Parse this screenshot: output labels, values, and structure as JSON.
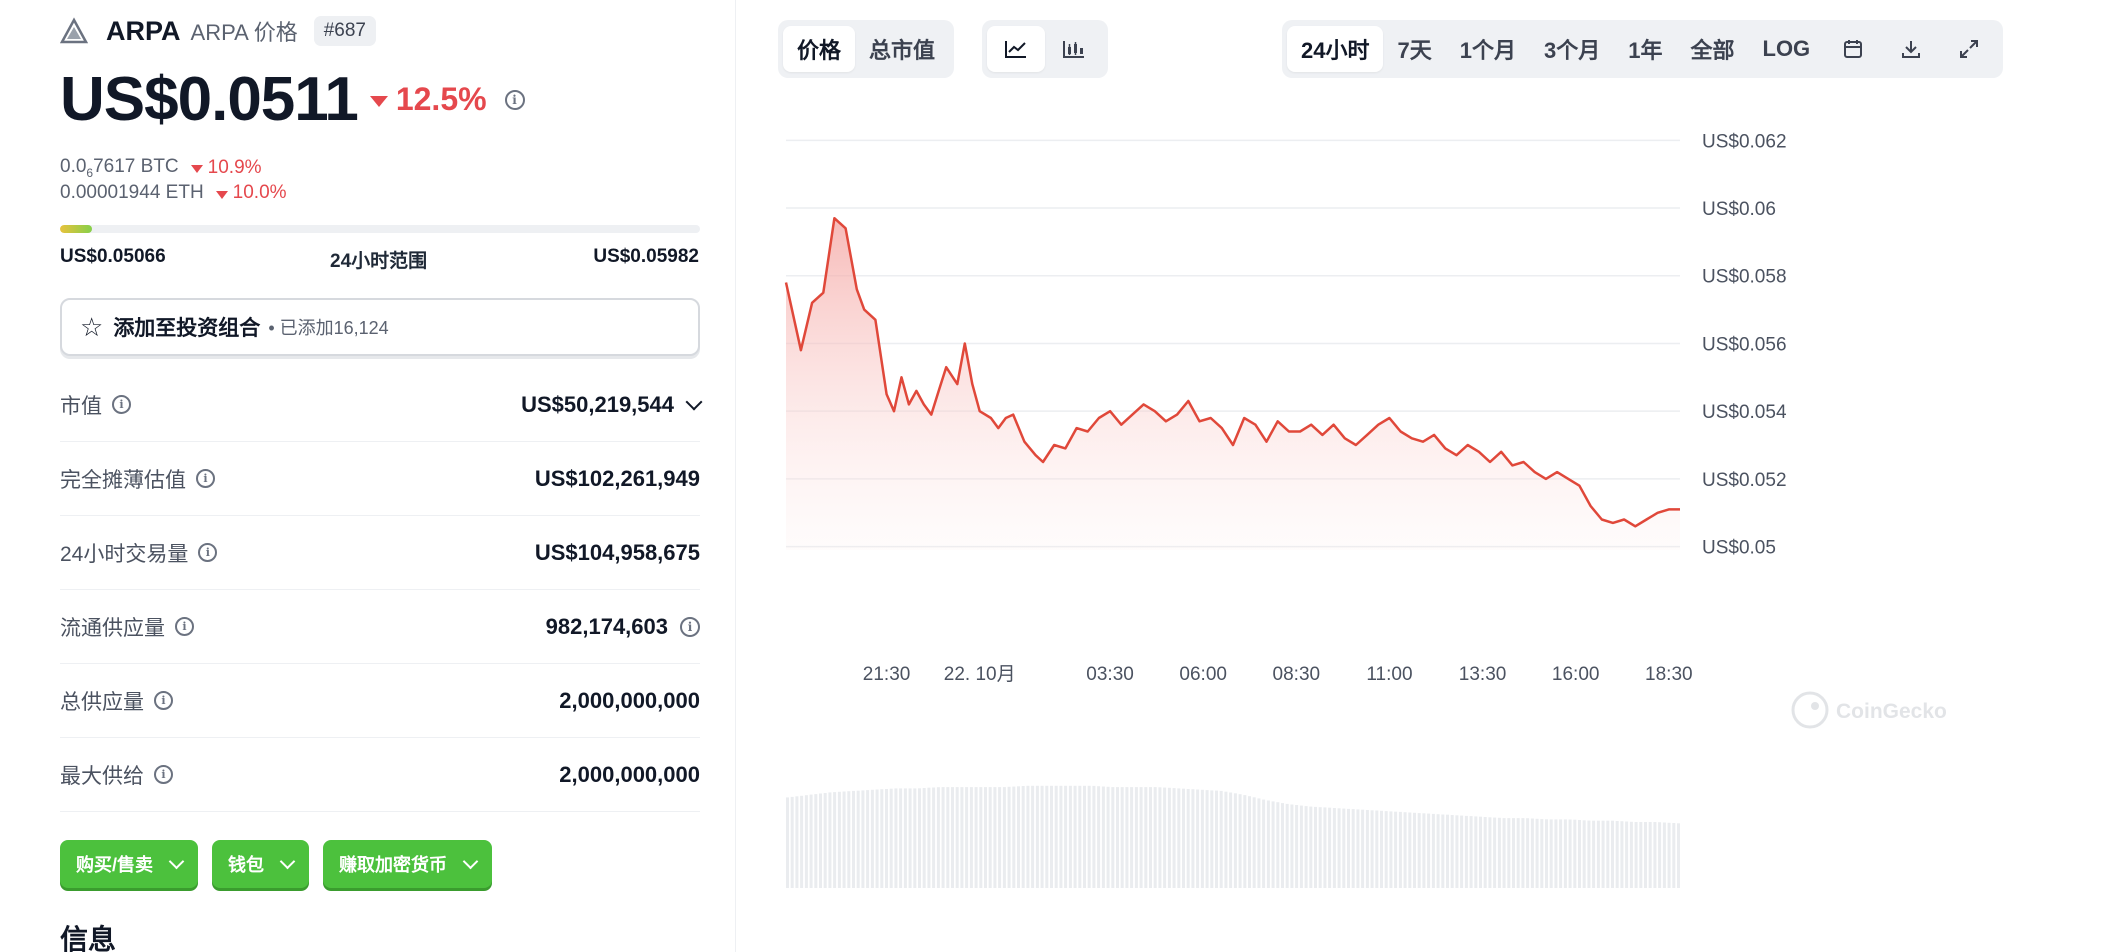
{
  "header": {
    "coin_name": "ARPA",
    "coin_sub": "ARPA 价格",
    "rank": "#687"
  },
  "price": {
    "value": "US$0.0511",
    "change": "12.5%"
  },
  "conversions": [
    {
      "value_prefix": "0.0",
      "value_sub": "6",
      "value_rest": "7617 BTC",
      "change": "10.9%"
    },
    {
      "value_prefix": "0.00001944 ETH",
      "value_sub": "",
      "value_rest": "",
      "change": "10.0%"
    }
  ],
  "range": {
    "low": "US$0.05066",
    "label": "24小时范围",
    "high": "US$0.05982",
    "position_fraction": 0.05
  },
  "portfolio": {
    "label": "添加至投资组合",
    "count": "• 已添加16,124"
  },
  "stats": [
    {
      "label": "市值",
      "value": "US$50,219,544"
    },
    {
      "label": "完全摊薄估值",
      "value": "US$102,261,949"
    },
    {
      "label": "24小时交易量",
      "value": "US$104,958,675"
    },
    {
      "label": "流通供应量",
      "value": "982,174,603"
    },
    {
      "label": "总供应量",
      "value": "2,000,000,000"
    },
    {
      "label": "最大供给",
      "value": "2,000,000,000"
    }
  ],
  "actions": [
    {
      "label": "购买/售卖"
    },
    {
      "label": "钱包"
    },
    {
      "label": "赚取加密货币"
    }
  ],
  "info_title": "信息",
  "chart_tabs": {
    "type_tabs": [
      {
        "label": "价格",
        "active": true
      },
      {
        "label": "总市值",
        "active": false
      }
    ],
    "style_icons": [
      "line-chart-icon",
      "candlestick-icon"
    ],
    "ranges": [
      {
        "label": "24小时",
        "active": true
      },
      {
        "label": "7天",
        "active": false
      },
      {
        "label": "1个月",
        "active": false
      },
      {
        "label": "3个月",
        "active": false
      },
      {
        "label": "1年",
        "active": false
      },
      {
        "label": "全部",
        "active": false
      },
      {
        "label": "LOG",
        "active": false
      }
    ],
    "tool_icons": [
      "calendar-icon",
      "download-icon",
      "fullscreen-icon"
    ]
  },
  "watermark": "CoinGecko",
  "colors": {
    "accent_red": "#e5484d",
    "green_button": "#4cc13d",
    "chart_line": "#e0483a"
  },
  "chart_data": {
    "type": "area",
    "title": "",
    "xlabel": "",
    "ylabel": "",
    "y_ticks": [
      "US$0.062",
      "US$0.06",
      "US$0.058",
      "US$0.056",
      "US$0.054",
      "US$0.052",
      "US$0.05"
    ],
    "y_tick_values": [
      0.062,
      0.06,
      0.058,
      0.056,
      0.054,
      0.052,
      0.05
    ],
    "ylim": [
      0.0499,
      0.0626
    ],
    "x_ticks": [
      "21:30",
      "22. 10月",
      "03:30",
      "06:00",
      "08:30",
      "11:00",
      "13:30",
      "16:00",
      "18:30"
    ],
    "x_tick_hours": [
      2.7,
      5.2,
      8.7,
      11.2,
      13.7,
      16.2,
      18.7,
      21.2,
      23.7
    ],
    "grid": true,
    "legend": "none",
    "series": [
      {
        "x_hours": [
          0.0,
          0.4,
          0.7,
          1.0,
          1.3,
          1.6,
          1.9,
          2.1,
          2.4,
          2.7,
          2.9,
          3.1,
          3.3,
          3.5,
          3.7,
          3.9,
          4.1,
          4.3,
          4.6,
          4.8,
          5.0,
          5.2,
          5.5,
          5.7,
          5.9,
          6.1,
          6.4,
          6.7,
          6.9,
          7.2,
          7.5,
          7.8,
          8.1,
          8.4,
          8.7,
          9.0,
          9.3,
          9.6,
          9.9,
          10.2,
          10.5,
          10.8,
          11.1,
          11.4,
          11.7,
          12.0,
          12.3,
          12.6,
          12.9,
          13.2,
          13.5,
          13.8,
          14.1,
          14.4,
          14.7,
          15.0,
          15.3,
          15.6,
          15.9,
          16.2,
          16.5,
          16.8,
          17.1,
          17.4,
          17.7,
          18.0,
          18.3,
          18.6,
          18.9,
          19.2,
          19.5,
          19.8,
          20.1,
          20.4,
          20.7,
          21.0,
          21.3,
          21.6,
          21.9,
          22.2,
          22.5,
          22.8,
          23.1,
          23.4,
          23.7,
          24.0
        ],
        "price": [
          0.0578,
          0.0558,
          0.0572,
          0.0575,
          0.0597,
          0.0594,
          0.0576,
          0.057,
          0.0567,
          0.0545,
          0.054,
          0.055,
          0.0542,
          0.0546,
          0.0542,
          0.0539,
          0.0546,
          0.0553,
          0.0548,
          0.056,
          0.0548,
          0.054,
          0.0538,
          0.0535,
          0.0538,
          0.0539,
          0.0531,
          0.0527,
          0.0525,
          0.053,
          0.0529,
          0.0535,
          0.0534,
          0.0538,
          0.054,
          0.0536,
          0.0539,
          0.0542,
          0.054,
          0.0537,
          0.0539,
          0.0543,
          0.0537,
          0.0538,
          0.0535,
          0.053,
          0.0538,
          0.0536,
          0.0531,
          0.0537,
          0.0534,
          0.0534,
          0.0536,
          0.0533,
          0.0536,
          0.0532,
          0.053,
          0.0533,
          0.0536,
          0.0538,
          0.0534,
          0.0532,
          0.0531,
          0.0533,
          0.0529,
          0.0527,
          0.053,
          0.0528,
          0.0525,
          0.0528,
          0.0524,
          0.0525,
          0.0522,
          0.052,
          0.0522,
          0.052,
          0.0518,
          0.0512,
          0.0508,
          0.0507,
          0.0508,
          0.0506,
          0.0508,
          0.051,
          0.0511,
          0.0511
        ]
      }
    ],
    "volume_relative": [
      0.7,
      0.72,
      0.74,
      0.75,
      0.76,
      0.77,
      0.77,
      0.78,
      0.78,
      0.78,
      0.78,
      0.79,
      0.79,
      0.79,
      0.79,
      0.78,
      0.78,
      0.78,
      0.77,
      0.76,
      0.75,
      0.72,
      0.68,
      0.65,
      0.63,
      0.62,
      0.61,
      0.6,
      0.59,
      0.58,
      0.57,
      0.56,
      0.55,
      0.54,
      0.54,
      0.53,
      0.53,
      0.52,
      0.52,
      0.51,
      0.51,
      0.5
    ]
  }
}
